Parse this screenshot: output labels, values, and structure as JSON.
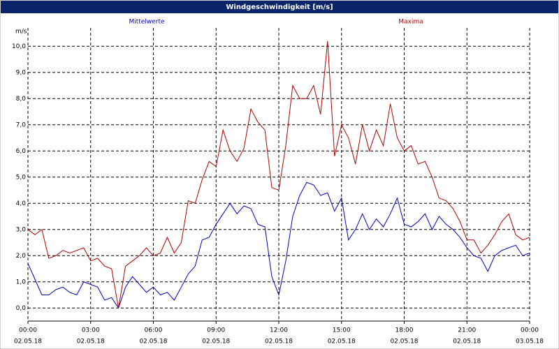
{
  "chart_data": {
    "type": "line",
    "title": "Windgeschwindigkeit [m/s]",
    "y_unit": "m/s",
    "x": [
      0,
      20,
      40,
      60,
      80,
      100,
      120,
      140,
      160,
      180,
      200,
      220,
      240,
      260,
      280,
      300,
      320,
      340,
      360,
      380,
      400,
      420,
      440,
      460,
      480,
      500,
      520,
      540,
      560,
      580,
      600,
      620,
      640,
      660,
      680,
      700,
      720,
      740,
      760,
      780,
      800,
      820,
      840,
      860,
      880,
      900,
      920,
      940,
      960,
      980,
      1000,
      1020,
      1040,
      1060,
      1080,
      1100,
      1120,
      1140,
      1160,
      1180,
      1200,
      1220,
      1240,
      1260,
      1280,
      1300,
      1320,
      1340,
      1360,
      1380,
      1400,
      1420,
      1440
    ],
    "xlim": [
      0,
      1440
    ],
    "xticks": [
      {
        "value": 0,
        "label": "00:00",
        "date": "02.05.18"
      },
      {
        "value": 180,
        "label": "03:00",
        "date": "02.05.18"
      },
      {
        "value": 360,
        "label": "06:00",
        "date": "02.05.18"
      },
      {
        "value": 540,
        "label": "09:00",
        "date": "02.05.18"
      },
      {
        "value": 720,
        "label": "12:00",
        "date": "02.05.18"
      },
      {
        "value": 900,
        "label": "15:00",
        "date": "02.05.18"
      },
      {
        "value": 1080,
        "label": "18:00",
        "date": "02.05.18"
      },
      {
        "value": 1260,
        "label": "21:00",
        "date": "02.05.18"
      },
      {
        "value": 1440,
        "label": "00:00",
        "date": "03.05.18"
      }
    ],
    "ylim": [
      -0.5,
      10.7
    ],
    "yticks": [
      {
        "value": 0,
        "label": "0,0"
      },
      {
        "value": 1,
        "label": "1,0"
      },
      {
        "value": 2,
        "label": "2,0"
      },
      {
        "value": 3,
        "label": "3,0"
      },
      {
        "value": 4,
        "label": "4,0"
      },
      {
        "value": 5,
        "label": "5,0"
      },
      {
        "value": 6,
        "label": "6,0"
      },
      {
        "value": 7,
        "label": "7,0"
      },
      {
        "value": 8,
        "label": "8,0"
      },
      {
        "value": 9,
        "label": "9,0"
      },
      {
        "value": 10,
        "label": "10,0"
      }
    ],
    "grid": true,
    "series": [
      {
        "name": "Mittelwerte",
        "color": "#0000c0",
        "values": [
          1.7,
          1.1,
          0.5,
          0.5,
          0.7,
          0.8,
          0.6,
          0.5,
          1.0,
          0.9,
          0.8,
          0.3,
          0.4,
          0.0,
          0.8,
          1.2,
          0.9,
          0.6,
          0.8,
          0.5,
          0.6,
          0.3,
          0.8,
          1.3,
          1.6,
          2.6,
          2.7,
          3.2,
          3.6,
          4.0,
          3.6,
          3.9,
          3.8,
          3.2,
          3.1,
          1.2,
          0.5,
          1.8,
          3.5,
          4.3,
          4.8,
          4.7,
          4.3,
          4.4,
          3.7,
          4.2,
          2.6,
          3.0,
          3.6,
          3.0,
          3.4,
          3.1,
          3.6,
          4.2,
          3.2,
          3.1,
          3.3,
          3.6,
          3.0,
          3.5,
          3.2,
          3.0,
          2.7,
          2.3,
          2.0,
          1.9,
          1.4,
          2.0,
          2.2,
          2.3,
          2.4,
          2.0,
          2.1
        ]
      },
      {
        "name": "Maxima",
        "color": "#b00000",
        "values": [
          3.0,
          2.8,
          3.0,
          1.9,
          2.0,
          2.2,
          2.1,
          2.2,
          2.3,
          1.8,
          1.9,
          1.6,
          1.5,
          0.0,
          1.6,
          1.8,
          2.0,
          2.3,
          2.0,
          2.1,
          2.7,
          2.1,
          2.5,
          4.1,
          4.0,
          4.9,
          5.6,
          5.4,
          6.8,
          6.0,
          5.6,
          6.1,
          7.6,
          7.1,
          6.8,
          4.6,
          4.5,
          6.2,
          8.5,
          8.0,
          8.0,
          8.5,
          7.4,
          10.2,
          5.8,
          7.0,
          6.5,
          5.5,
          7.0,
          6.0,
          6.8,
          6.2,
          7.8,
          6.5,
          6.0,
          6.2,
          5.5,
          5.6,
          5.0,
          4.2,
          4.1,
          3.8,
          3.3,
          2.6,
          2.6,
          2.1,
          2.4,
          2.8,
          3.3,
          3.6,
          2.8,
          2.6,
          2.7
        ]
      }
    ]
  }
}
